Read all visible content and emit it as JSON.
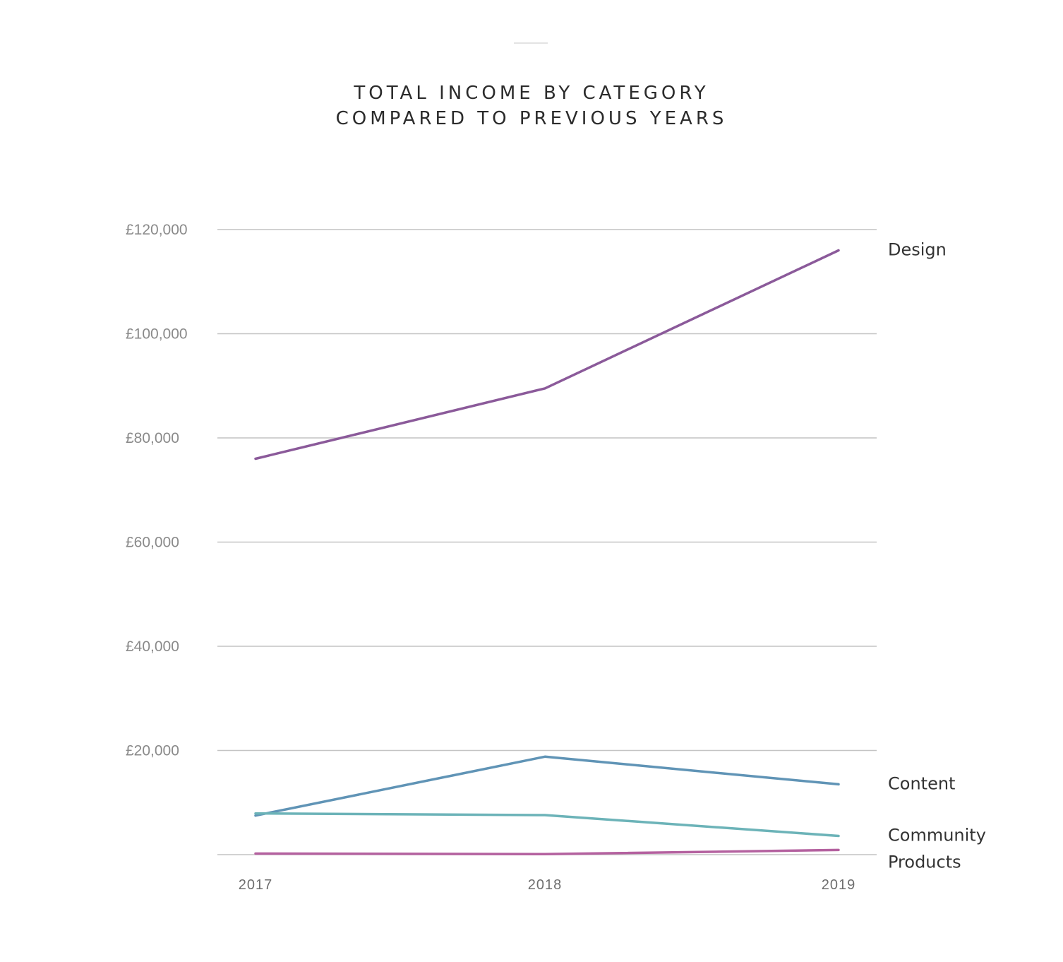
{
  "title_lines": [
    "TOTAL INCOME BY CATEGORY",
    "COMPARED TO PREVIOUS YEARS"
  ],
  "chart_data": {
    "type": "line",
    "title": "TOTAL INCOME BY CATEGORY COMPARED TO PREVIOUS YEARS",
    "xlabel": "",
    "ylabel": "",
    "x": [
      "2017",
      "2018",
      "2019"
    ],
    "ylim": [
      0,
      120000
    ],
    "yticks": [
      20000,
      40000,
      60000,
      80000,
      100000,
      120000
    ],
    "ytick_labels": [
      "£20,000",
      "£40,000",
      "£60,000",
      "£80,000",
      "£100,000",
      "£120,000"
    ],
    "grid": true,
    "legend": "direct labels at right end of lines",
    "series": [
      {
        "name": "Design",
        "values": [
          76000,
          89500,
          116000
        ],
        "color": "#8b5a9a"
      },
      {
        "name": "Content",
        "values": [
          7500,
          18800,
          13500
        ],
        "color": "#6094b6"
      },
      {
        "name": "Community",
        "values": [
          7900,
          7600,
          3600
        ],
        "color": "#6cb3b8"
      },
      {
        "name": "Products",
        "values": [
          200,
          100,
          900
        ],
        "color": "#b4619f"
      }
    ]
  }
}
